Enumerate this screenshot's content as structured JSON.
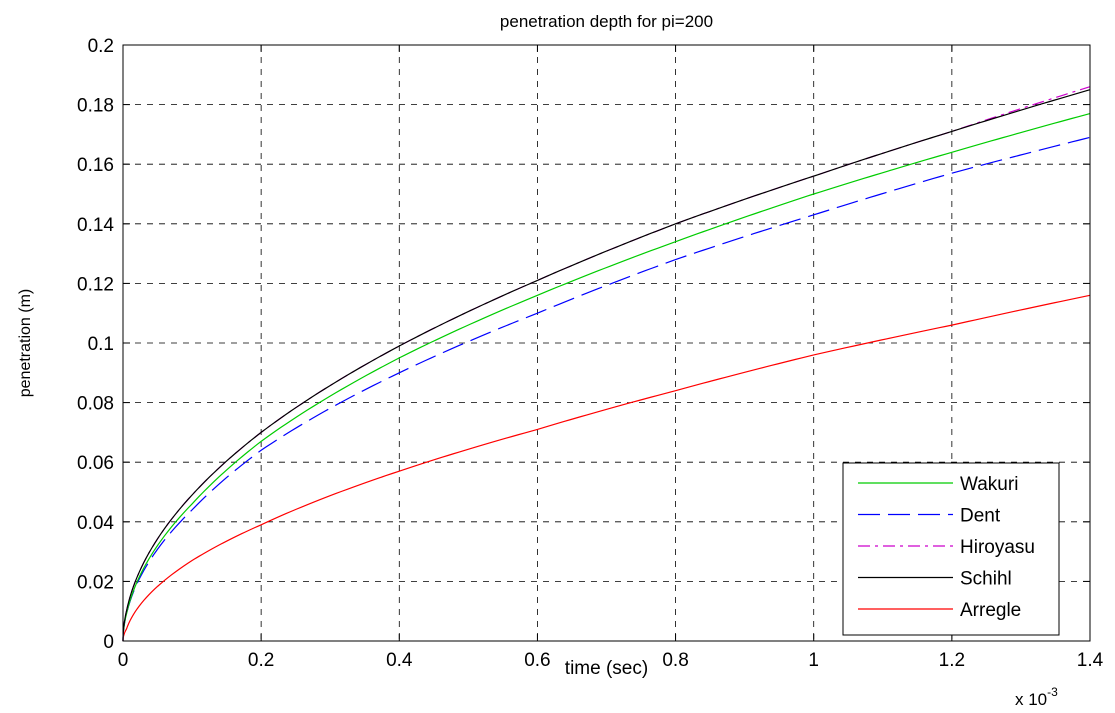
{
  "chart_data": {
    "type": "line",
    "title": "penetration depth for pi=200",
    "xlabel": "time (sec)",
    "ylabel": "penetration (m)",
    "x_multiplier": {
      "base": "x 10",
      "exponent": "-3"
    },
    "xlim": [
      0,
      1.4
    ],
    "ylim": [
      0,
      0.2
    ],
    "xticks": [
      "0",
      "0.2",
      "0.4",
      "0.6",
      "0.8",
      "1",
      "1.2",
      "1.4"
    ],
    "yticks": [
      "0",
      "0.02",
      "0.04",
      "0.06",
      "0.08",
      "0.1",
      "0.12",
      "0.14",
      "0.16",
      "0.18",
      "0.2"
    ],
    "grid": true,
    "legend_position": "bottom-right",
    "x": [
      0.005,
      0.1,
      0.2,
      0.4,
      0.6,
      0.8,
      1.0,
      1.2,
      1.4
    ],
    "series": [
      {
        "name": "Wakuri",
        "color": "#00cc00",
        "dash": "solid",
        "values": [
          0.009,
          0.046,
          0.067,
          0.095,
          0.116,
          0.134,
          0.15,
          0.164,
          0.177
        ]
      },
      {
        "name": "Dent",
        "color": "#0000ff",
        "dash": "long-dash",
        "values": [
          0.009,
          0.044,
          0.064,
          0.09,
          0.11,
          0.128,
          0.143,
          0.157,
          0.169
        ]
      },
      {
        "name": "Hiroyasu",
        "color": "#cc00cc",
        "dash": "dash-dot",
        "values": [
          0.01,
          0.049,
          0.07,
          0.099,
          0.121,
          0.14,
          0.156,
          0.171,
          0.186
        ]
      },
      {
        "name": "Schihl",
        "color": "#000000",
        "dash": "solid",
        "values": [
          0.01,
          0.049,
          0.07,
          0.099,
          0.121,
          0.14,
          0.156,
          0.171,
          0.185
        ]
      },
      {
        "name": "Arregle",
        "color": "#ff0000",
        "dash": "solid",
        "values": [
          0.004,
          0.027,
          0.039,
          0.057,
          0.071,
          0.084,
          0.096,
          0.106,
          0.116
        ]
      }
    ]
  }
}
